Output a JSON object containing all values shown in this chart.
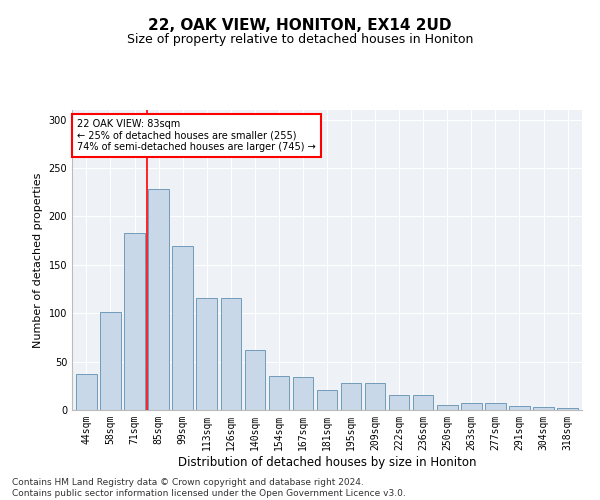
{
  "title": "22, OAK VIEW, HONITON, EX14 2UD",
  "subtitle": "Size of property relative to detached houses in Honiton",
  "xlabel": "Distribution of detached houses by size in Honiton",
  "ylabel": "Number of detached properties",
  "categories": [
    "44sqm",
    "58sqm",
    "71sqm",
    "85sqm",
    "99sqm",
    "113sqm",
    "126sqm",
    "140sqm",
    "154sqm",
    "167sqm",
    "181sqm",
    "195sqm",
    "209sqm",
    "222sqm",
    "236sqm",
    "250sqm",
    "263sqm",
    "277sqm",
    "291sqm",
    "304sqm",
    "318sqm"
  ],
  "values": [
    37,
    101,
    183,
    228,
    169,
    116,
    116,
    62,
    35,
    34,
    21,
    28,
    28,
    16,
    16,
    5,
    7,
    7,
    4,
    3,
    2
  ],
  "bar_color": "#c8d8e8",
  "bar_edge_color": "#6090b0",
  "vline_x": 2.5,
  "vline_color": "red",
  "annotation_text": "22 OAK VIEW: 83sqm\n← 25% of detached houses are smaller (255)\n74% of semi-detached houses are larger (745) →",
  "annotation_box_color": "white",
  "annotation_box_edge": "red",
  "ylim": [
    0,
    310
  ],
  "yticks": [
    0,
    50,
    100,
    150,
    200,
    250,
    300
  ],
  "bg_color": "#eef2f7",
  "footer": "Contains HM Land Registry data © Crown copyright and database right 2024.\nContains public sector information licensed under the Open Government Licence v3.0.",
  "title_fontsize": 11,
  "subtitle_fontsize": 9,
  "xlabel_fontsize": 8.5,
  "ylabel_fontsize": 8,
  "tick_fontsize": 7,
  "footer_fontsize": 6.5
}
